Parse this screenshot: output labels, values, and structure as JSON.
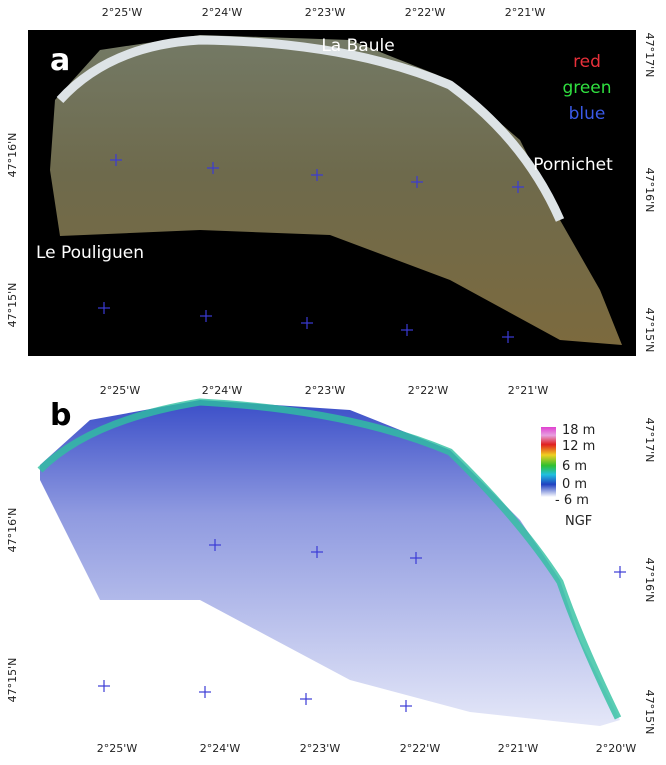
{
  "panels": [
    {
      "label": "a",
      "top_lon": [
        "2°25'W",
        "2°24'W",
        "2°23'W",
        "2°22'W",
        "2°21'W"
      ],
      "left_lat": [
        "47°16'N",
        "47°15'N"
      ],
      "right_lat": [
        "47°17'N",
        "47°16'N",
        "47°15'N"
      ],
      "places": [
        "La Baule",
        "Pornichet",
        "Le Pouliguen"
      ],
      "bands": [
        "red",
        "green",
        "blue"
      ]
    },
    {
      "label": "b",
      "top_lon": [
        "2°25'W",
        "2°24'W",
        "2°23'W",
        "2°22'W",
        "2°21'W"
      ],
      "bottom_lon": [
        "2°25'W",
        "2°24'W",
        "2°23'W",
        "2°22'W",
        "2°21'W",
        "2°20'W"
      ],
      "left_lat": [
        "47°16'N",
        "47°15'N"
      ],
      "right_lat": [
        "47°17'N",
        "47°16'N",
        "47°15'N"
      ],
      "colorbar": [
        "18 m",
        "12 m",
        "6 m",
        "0 m",
        "- 6 m"
      ],
      "datum": "NGF"
    }
  ]
}
